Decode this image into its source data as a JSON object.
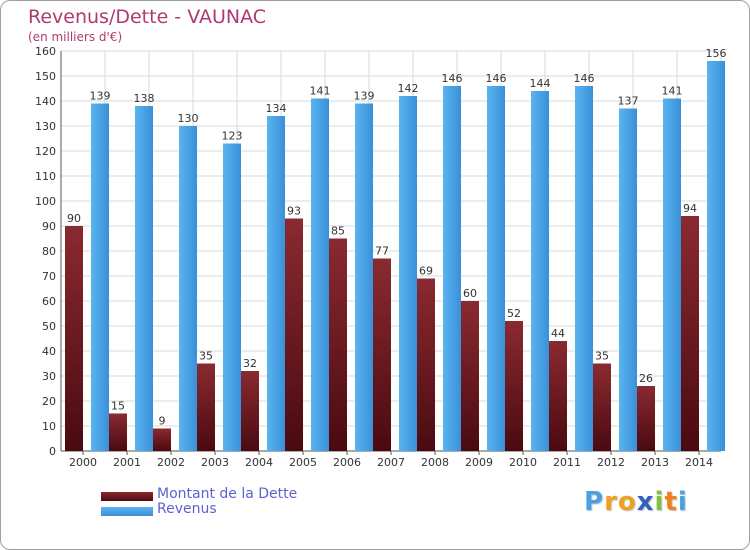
{
  "chart_data": {
    "type": "bar",
    "title": "Revenus/Dette - VAUNAC",
    "subtitle": "(en milliers d'€)",
    "categories": [
      "2000",
      "2001",
      "2002",
      "2003",
      "2004",
      "2005",
      "2006",
      "2007",
      "2008",
      "2009",
      "2010",
      "2011",
      "2012",
      "2013",
      "2014"
    ],
    "series": [
      {
        "name": "Montant de la Dette",
        "values": [
          90,
          15,
          9,
          35,
          32,
          93,
          85,
          77,
          69,
          60,
          52,
          44,
          35,
          26,
          94
        ]
      },
      {
        "name": "Revenus",
        "values": [
          139,
          138,
          130,
          123,
          134,
          141,
          139,
          142,
          146,
          146,
          144,
          146,
          137,
          141,
          156
        ]
      }
    ],
    "ylim": [
      0,
      160
    ],
    "yticks": [
      0,
      10,
      20,
      30,
      40,
      50,
      60,
      70,
      80,
      90,
      100,
      110,
      120,
      130,
      140,
      150,
      160
    ],
    "grid": true,
    "legend_position": "bottom-left",
    "colors": {
      "dette": "#7a1e24",
      "revenus": "#4aa8e8",
      "title": "#b03a70",
      "legend_text": "#6060d0"
    }
  },
  "logo": {
    "letters": [
      "P",
      "r",
      "o",
      "x",
      "i",
      "t",
      "i"
    ],
    "colors": [
      "#4aa0e0",
      "#f0a020",
      "#f0a020",
      "#3060c0",
      "#80c040",
      "#f08020",
      "#4aa0e0"
    ]
  }
}
